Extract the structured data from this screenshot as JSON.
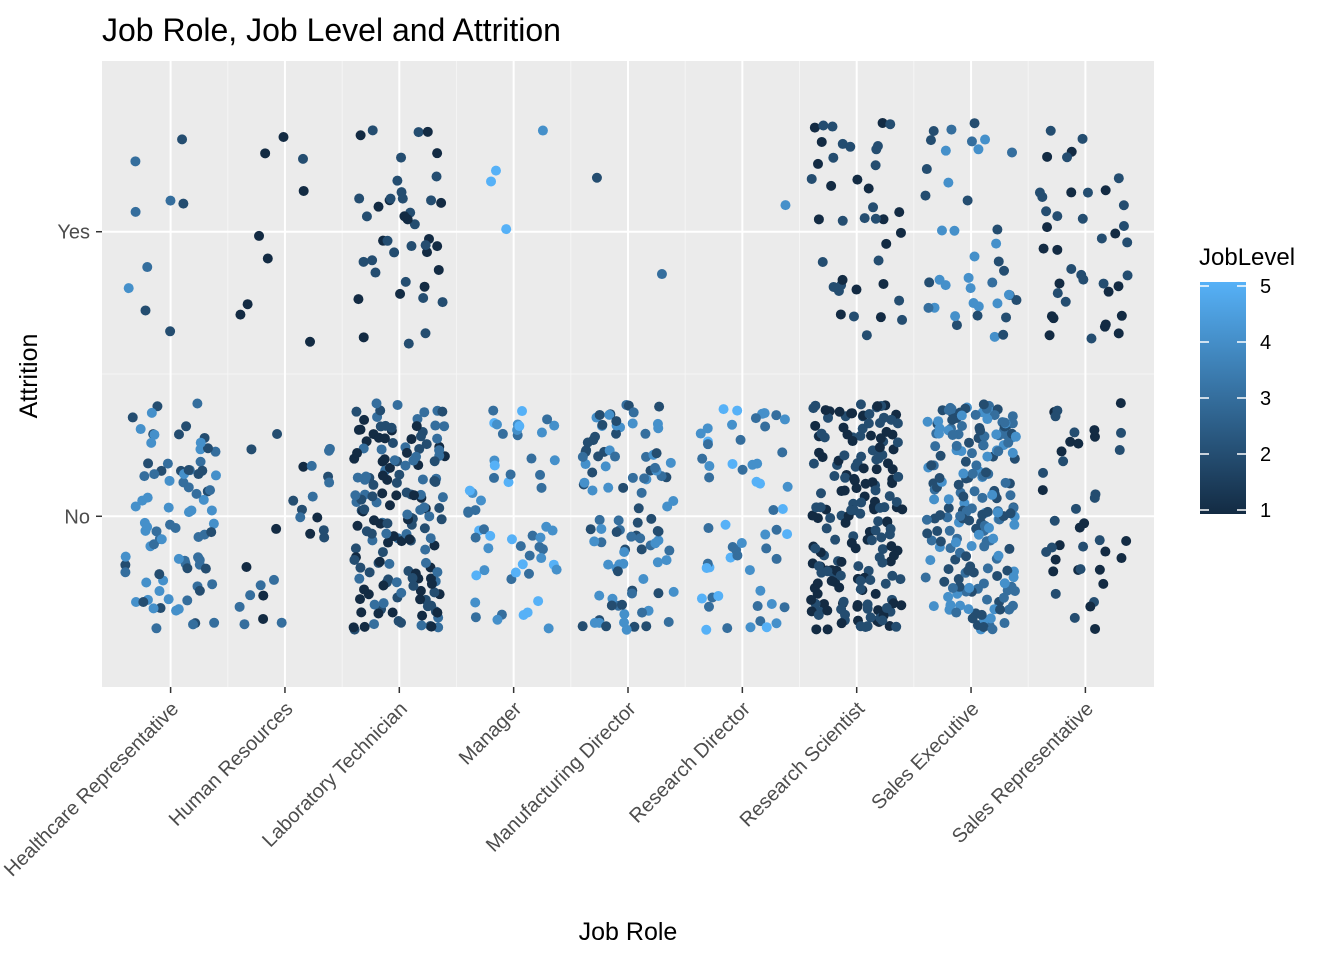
{
  "chart_data": {
    "type": "scatter",
    "title": "Job Role, Job Level and Attrition",
    "xlabel": "Job Role",
    "ylabel": "Attrition",
    "categories": [
      "Healthcare Representative",
      "Human Resources",
      "Laboratory Technician",
      "Manager",
      "Manufacturing Director",
      "Research Director",
      "Research Scientist",
      "Sales Executive",
      "Sales Representative"
    ],
    "y_categories": [
      "No",
      "Yes"
    ],
    "jitter": {
      "x": 0.4,
      "y": 0.4
    },
    "grid": true,
    "legend": {
      "title": "JobLevel",
      "position": "right",
      "range": [
        1,
        5
      ],
      "ticks": [
        "1",
        "2",
        "3",
        "4",
        "5"
      ],
      "low_color": "#132B43",
      "high_color": "#56B1F7"
    },
    "groups": [
      {
        "role": "Healthcare Representative",
        "attrition": "No",
        "count": 87,
        "levels": [
          2,
          3,
          4
        ]
      },
      {
        "role": "Healthcare Representative",
        "attrition": "Yes",
        "count": 9,
        "levels": [
          2,
          3,
          4
        ]
      },
      {
        "role": "Human Resources",
        "attrition": "No",
        "count": 26,
        "levels": [
          1,
          2,
          3
        ]
      },
      {
        "role": "Human Resources",
        "attrition": "Yes",
        "count": 9,
        "levels": [
          1,
          2
        ]
      },
      {
        "role": "Laboratory Technician",
        "attrition": "No",
        "count": 170,
        "levels": [
          1,
          2,
          3
        ]
      },
      {
        "role": "Laboratory Technician",
        "attrition": "Yes",
        "count": 42,
        "levels": [
          1,
          2
        ]
      },
      {
        "role": "Manager",
        "attrition": "No",
        "count": 58,
        "levels": [
          3,
          4,
          5
        ]
      },
      {
        "role": "Manager",
        "attrition": "Yes",
        "count": 4,
        "levels": [
          4,
          5
        ]
      },
      {
        "role": "Manufacturing Director",
        "attrition": "No",
        "count": 104,
        "levels": [
          2,
          3,
          4
        ]
      },
      {
        "role": "Manufacturing Director",
        "attrition": "Yes",
        "count": 2,
        "levels": [
          2,
          3
        ]
      },
      {
        "role": "Research Director",
        "attrition": "No",
        "count": 57,
        "levels": [
          3,
          4,
          5
        ]
      },
      {
        "role": "Research Director",
        "attrition": "Yes",
        "count": 1,
        "levels": [
          4
        ]
      },
      {
        "role": "Research Scientist",
        "attrition": "No",
        "count": 194,
        "levels": [
          1,
          2
        ]
      },
      {
        "role": "Research Scientist",
        "attrition": "Yes",
        "count": 40,
        "levels": [
          1,
          2
        ]
      },
      {
        "role": "Sales Executive",
        "attrition": "No",
        "count": 205,
        "levels": [
          2,
          3,
          4
        ]
      },
      {
        "role": "Sales Executive",
        "attrition": "Yes",
        "count": 40,
        "levels": [
          2,
          3,
          4
        ]
      },
      {
        "role": "Sales Representative",
        "attrition": "No",
        "count": 40,
        "levels": [
          1,
          2
        ]
      },
      {
        "role": "Sales Representative",
        "attrition": "Yes",
        "count": 40,
        "levels": [
          1,
          2
        ]
      }
    ]
  }
}
